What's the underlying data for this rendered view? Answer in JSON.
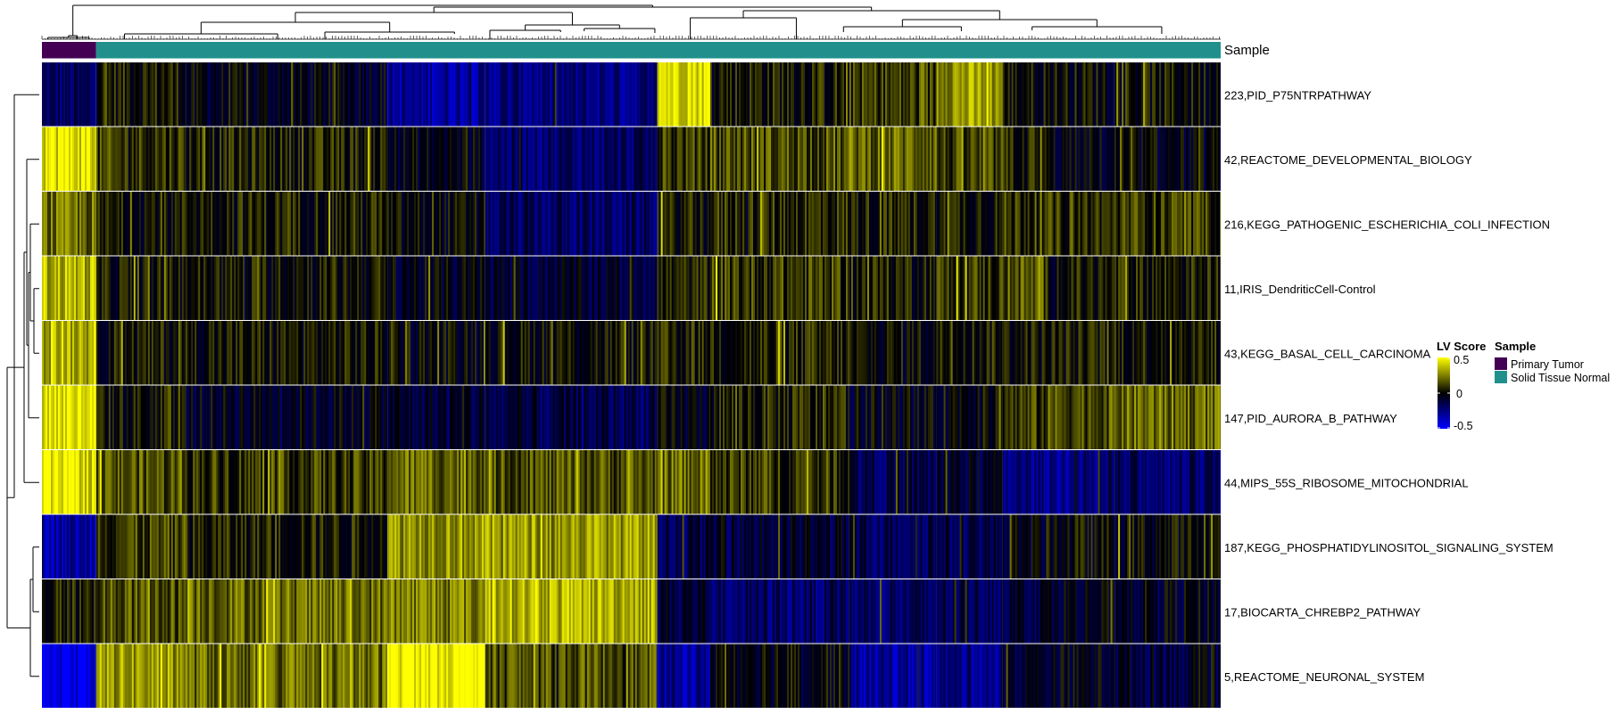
{
  "chart_data": {
    "type": "heatmap",
    "title": "",
    "xlabel": "",
    "ylabel": "",
    "rows": [
      "223,PID_P75NTRPATHWAY",
      "42,REACTOME_DEVELOPMENTAL_BIOLOGY",
      "216,KEGG_PATHOGENIC_ESCHERICHIA_COLI_INFECTION",
      "11,IRIS_DendriticCell-Control",
      "43,KEGG_BASAL_CELL_CARCINOMA",
      "147,PID_AURORA_B_PATHWAY",
      "44,MIPS_55S_RIBOSOME_MITOCHONDRIAL",
      "187,KEGG_PHOSPHATIDYLINOSITOL_SIGNALING_SYSTEM",
      "17,BIOCARTA_CHREBP2_PATHWAY",
      "5,REACTOME_NEURONAL_SYSTEM"
    ],
    "column_groups": [
      {
        "name": "Primary Tumor",
        "fraction": 0.046
      },
      {
        "name": "Solid Tissue Normal",
        "fraction": 0.954
      }
    ],
    "column_blocks_fraction": [
      0.046,
      0.122,
      0.293,
      0.376,
      0.522,
      0.567,
      0.685,
      0.759,
      0.815,
      0.852,
      0.91,
      1.0
    ],
    "block_mean_scores": [
      [
        -0.2,
        0.05,
        -0.05,
        -0.3,
        -0.25,
        0.45,
        0.05,
        0.1,
        0.3,
        0.02,
        0.02,
        0.02
      ],
      [
        0.45,
        0.1,
        0.05,
        -0.05,
        -0.2,
        0.1,
        0.15,
        0.2,
        0.1,
        0.05,
        -0.05,
        -0.05
      ],
      [
        0.2,
        0.03,
        0.05,
        -0.02,
        -0.2,
        0.03,
        0.08,
        0.05,
        0.05,
        0.1,
        0.08,
        0.1
      ],
      [
        0.35,
        0.02,
        0.03,
        -0.05,
        -0.1,
        0.05,
        0.1,
        0.05,
        0.1,
        0.15,
        0.03,
        0.05
      ],
      [
        0.35,
        0.03,
        0.03,
        0.0,
        0.02,
        0.05,
        0.05,
        0.0,
        0.05,
        0.03,
        0.03,
        0.05
      ],
      [
        0.45,
        0.02,
        -0.05,
        -0.1,
        -0.15,
        -0.05,
        0.05,
        -0.05,
        0.0,
        0.1,
        0.15,
        0.2
      ],
      [
        0.45,
        0.15,
        0.1,
        0.2,
        0.15,
        0.2,
        0.1,
        -0.15,
        -0.1,
        -0.25,
        -0.25,
        -0.2
      ],
      [
        -0.3,
        0.12,
        0.05,
        0.3,
        0.3,
        -0.15,
        -0.1,
        -0.15,
        -0.15,
        -0.05,
        0.0,
        0.0
      ],
      [
        0.05,
        0.15,
        0.2,
        0.25,
        0.35,
        -0.1,
        -0.2,
        -0.2,
        -0.15,
        -0.1,
        -0.05,
        -0.05
      ],
      [
        -0.45,
        0.3,
        0.2,
        0.5,
        0.15,
        -0.3,
        0.0,
        -0.3,
        -0.25,
        -0.1,
        -0.05,
        -0.1
      ]
    ],
    "row_dendrogram_order": "top-to-bottom as rows",
    "column_annotation_name": "Sample",
    "color_scale": {
      "title": "LV Score",
      "ticks": [
        0.5,
        0,
        -0.5
      ],
      "tick_labels": [
        "0.5",
        "0",
        "-0.5"
      ],
      "range": [
        -0.5,
        0.5
      ],
      "high": "#ffff00",
      "mid": "#000000",
      "low": "#0000ff"
    },
    "annotation_legend": {
      "title": "Sample",
      "entries": [
        {
          "label": "Primary Tumor",
          "color": "#440154"
        },
        {
          "label": "Solid Tissue Normal",
          "color": "#21908c"
        }
      ]
    }
  }
}
